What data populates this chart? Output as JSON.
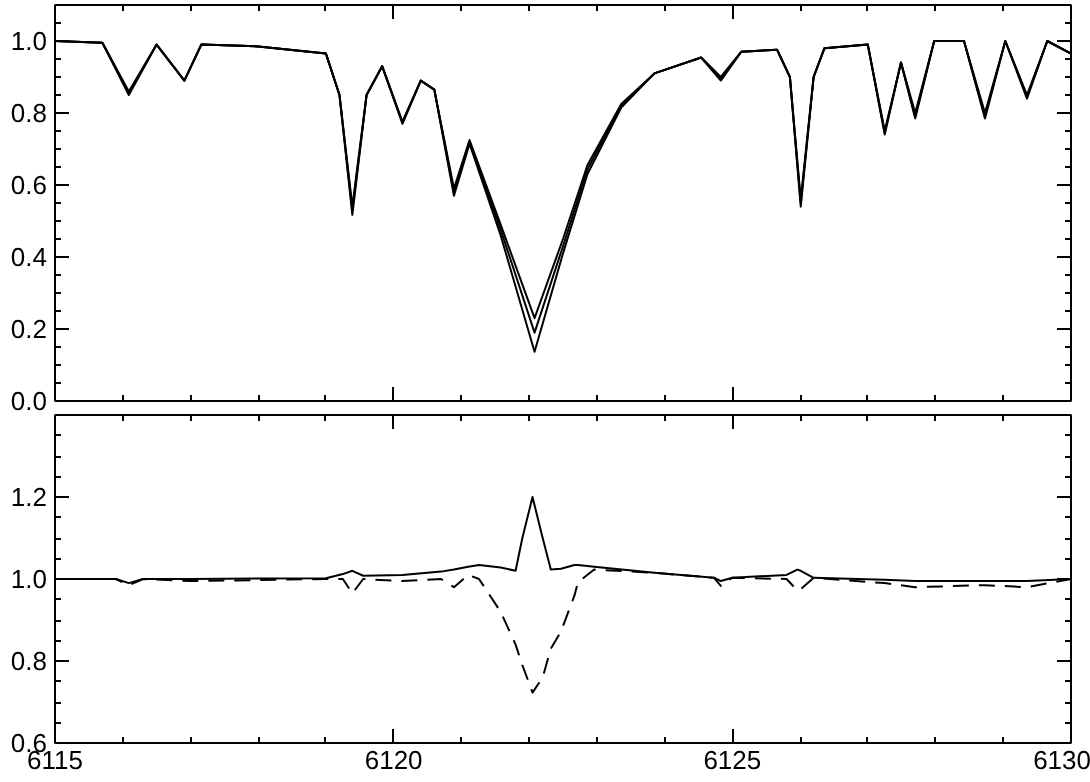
{
  "chart_data": [
    {
      "type": "line",
      "tick_labels": "y",
      "xlim": [
        6115,
        6130
      ],
      "xticks": [
        6115,
        6120,
        6125,
        6130
      ],
      "ylim": [
        0,
        1.1
      ],
      "yticks": [
        {
          "value": 0,
          "label": "0.0"
        },
        {
          "value": 0.2,
          "label": "0.2"
        },
        {
          "value": 0.4,
          "label": "0.4"
        },
        {
          "value": 0.6,
          "label": "0.6"
        },
        {
          "value": 0.8,
          "label": "0.8"
        },
        {
          "value": 1,
          "label": "1.0"
        }
      ],
      "x": [
        6115,
        6115.7,
        6116.09,
        6116.5,
        6116.91,
        6117.16,
        6118.0,
        6119.0,
        6119.2,
        6119.39,
        6119.6,
        6119.83,
        6120.13,
        6120.4,
        6120.6,
        6120.89,
        6121.12,
        6121.58,
        6122.08,
        6122.5,
        6122.86,
        6123.36,
        6123.85,
        6124.54,
        6124.83,
        6125.13,
        6125.66,
        6125.85,
        6126.01,
        6126.2,
        6126.36,
        6127.0,
        6127.25,
        6127.49,
        6127.7,
        6127.98,
        6128.42,
        6128.73,
        6129.03,
        6129.35,
        6129.65,
        6130
      ],
      "series": [
        {
          "color": "#000000",
          "line_style": "solid",
          "values": [
            1.0,
            0.995,
            0.86,
            0.99,
            0.89,
            0.99,
            0.985,
            0.965,
            0.85,
            0.54,
            0.85,
            0.93,
            0.775,
            0.89,
            0.865,
            0.59,
            0.725,
            0.49,
            0.23,
            0.45,
            0.655,
            0.825,
            0.91,
            0.954,
            0.9,
            0.97,
            0.976,
            0.9,
            0.56,
            0.9,
            0.98,
            0.99,
            0.75,
            0.94,
            0.8,
            1.0,
            1.0,
            0.8,
            1.0,
            0.85,
            1.0,
            0.965
          ]
        },
        {
          "color": "#000000",
          "line_style": "solid",
          "values": [
            1.0,
            0.995,
            0.855,
            0.99,
            0.89,
            0.99,
            0.985,
            0.965,
            0.85,
            0.53,
            0.85,
            0.93,
            0.775,
            0.89,
            0.865,
            0.58,
            0.72,
            0.476,
            0.19,
            0.43,
            0.643,
            0.82,
            0.91,
            0.954,
            0.895,
            0.97,
            0.976,
            0.9,
            0.55,
            0.9,
            0.98,
            0.99,
            0.745,
            0.94,
            0.79,
            1.0,
            1.0,
            0.79,
            1.0,
            0.846,
            1.0,
            0.965
          ]
        },
        {
          "color": "#000000",
          "line_style": "solid",
          "values": [
            1.0,
            0.995,
            0.85,
            0.99,
            0.89,
            0.99,
            0.985,
            0.965,
            0.85,
            0.517,
            0.85,
            0.93,
            0.77,
            0.89,
            0.865,
            0.57,
            0.715,
            0.46,
            0.137,
            0.41,
            0.63,
            0.815,
            0.91,
            0.954,
            0.89,
            0.97,
            0.976,
            0.9,
            0.54,
            0.9,
            0.98,
            0.99,
            0.74,
            0.94,
            0.785,
            1.0,
            1.0,
            0.785,
            1.0,
            0.84,
            1.0,
            0.965
          ]
        }
      ]
    },
    {
      "type": "line",
      "xlim": [
        6115,
        6130
      ],
      "xticks": [
        6115,
        6120,
        6125,
        6130
      ],
      "ylim": [
        0.6,
        1.4
      ],
      "yticks": [
        {
          "value": 0.6,
          "label": "0.6"
        },
        {
          "value": 0.8,
          "label": "0.8"
        },
        {
          "value": 1,
          "label": "1.0"
        },
        {
          "value": 1.2,
          "label": "1.2"
        }
      ],
      "x": [
        6115,
        6115.9,
        6116.09,
        6116.3,
        6117.0,
        6119.0,
        6119.25,
        6119.39,
        6119.55,
        6120.13,
        6120.7,
        6120.89,
        6121.1,
        6121.26,
        6121.58,
        6121.8,
        6121.9,
        6122.05,
        6122.2,
        6122.32,
        6122.47,
        6122.67,
        6122.72,
        6122.96,
        6123.85,
        6124.73,
        6124.83,
        6125.0,
        6125.8,
        6125.96,
        6126.01,
        6126.2,
        6127.25,
        6127.7,
        6128.73,
        6129.35,
        6130
      ],
      "series": [
        {
          "color": "#000000",
          "line_style": "solid",
          "values": [
            1.0,
            1.0,
            0.99,
            1.0,
            1.0,
            1.002,
            1.012,
            1.02,
            1.008,
            1.01,
            1.018,
            1.023,
            1.03,
            1.034,
            1.028,
            1.02,
            1.1,
            1.2,
            1.1,
            1.023,
            1.025,
            1.034,
            1.034,
            1.03,
            1.015,
            1.003,
            0.995,
            1.003,
            1.01,
            1.023,
            1.02,
            1.003,
            0.998,
            0.995,
            0.995,
            0.995,
            1.0
          ]
        },
        {
          "color": "#000000",
          "line_style": "dashed",
          "values": [
            1.0,
            1.0,
            0.985,
            1.0,
            0.995,
            1.0,
            1.0,
            0.965,
            1.0,
            0.995,
            1.0,
            0.98,
            1.01,
            1.0,
            0.92,
            0.84,
            0.79,
            0.723,
            0.76,
            0.83,
            0.872,
            0.96,
            0.992,
            1.023,
            1.015,
            1.003,
            0.983,
            1.003,
            1.0,
            0.972,
            0.975,
            1.003,
            0.99,
            0.98,
            0.985,
            0.98,
            1.0
          ]
        }
      ]
    }
  ]
}
